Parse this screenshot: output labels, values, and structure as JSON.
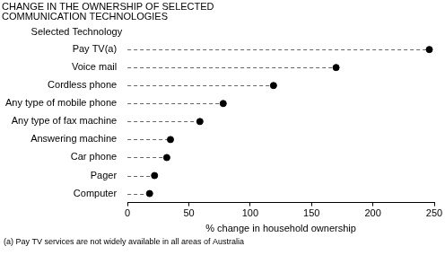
{
  "chart_data": {
    "type": "dot",
    "orientation": "horizontal",
    "title": [
      "CHANGE IN THE OWNERSHIP OF SELECTED",
      "COMMUNICATION TECHNOLOGIES"
    ],
    "ylabel": "Selected Technology",
    "xlabel": "% change in household ownership",
    "annotations": [
      "(a) Pay TV services are not widely available in all areas of Australia"
    ],
    "categories": [
      "Pay TV(a)",
      "Voice mail",
      "Cordless phone",
      "Any type of mobile phone",
      "Any type of fax machine",
      "Answering machine",
      "Car phone",
      "Pager",
      "Computer"
    ],
    "values": [
      246,
      170,
      119,
      78,
      59,
      35,
      32,
      22,
      18
    ],
    "color": "#000000",
    "marker": "circle",
    "line_style": "dashed",
    "xlim": [
      0,
      250
    ],
    "xticks": [
      0,
      50,
      100,
      150,
      200,
      250
    ],
    "grid": false
  }
}
